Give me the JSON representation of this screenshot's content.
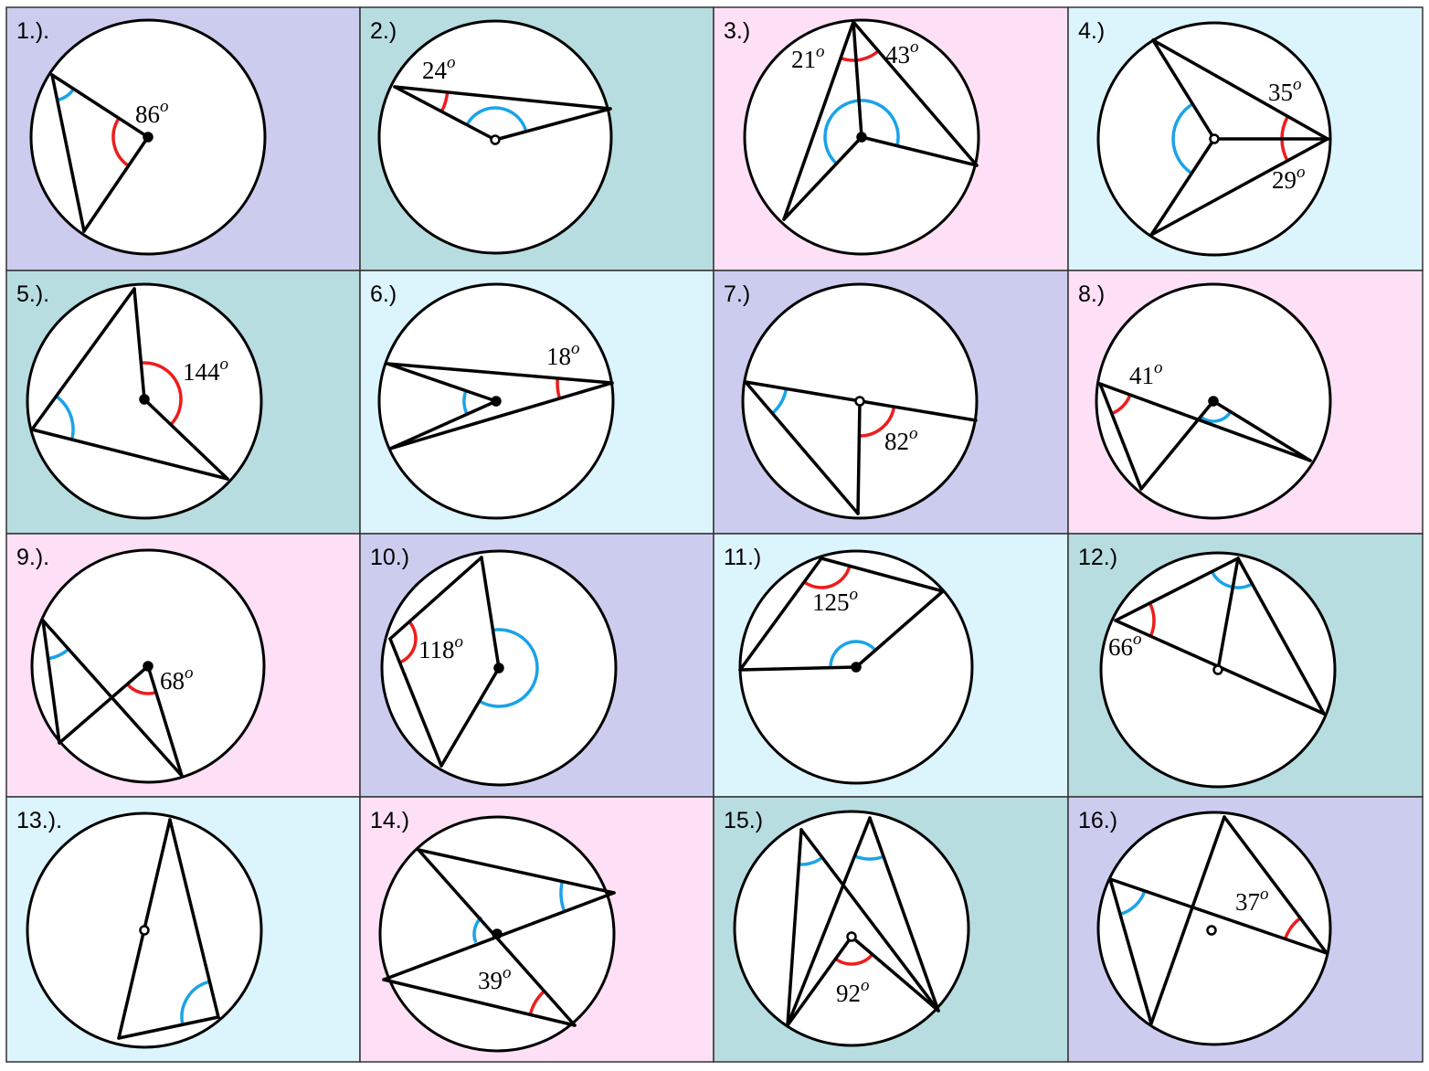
{
  "problems": [
    {
      "label": "1.).",
      "angles": [
        {
          "value": "86",
          "unit": "o"
        }
      ]
    },
    {
      "label": "2.)",
      "angles": [
        {
          "value": "24",
          "unit": "o"
        }
      ]
    },
    {
      "label": "3.)",
      "angles": [
        {
          "value": "21",
          "unit": "o"
        },
        {
          "value": "43",
          "unit": "o"
        }
      ]
    },
    {
      "label": "4.)",
      "angles": [
        {
          "value": "35",
          "unit": "o"
        },
        {
          "value": "29",
          "unit": "o"
        }
      ]
    },
    {
      "label": "5.).",
      "angles": [
        {
          "value": "144",
          "unit": "o"
        }
      ]
    },
    {
      "label": "6.)",
      "angles": [
        {
          "value": "18",
          "unit": "o"
        }
      ]
    },
    {
      "label": "7.)",
      "angles": [
        {
          "value": "82",
          "unit": "o"
        }
      ]
    },
    {
      "label": "8.)",
      "angles": [
        {
          "value": "41",
          "unit": "o"
        }
      ]
    },
    {
      "label": "9.).",
      "angles": [
        {
          "value": "68",
          "unit": "o"
        }
      ]
    },
    {
      "label": "10.)",
      "angles": [
        {
          "value": "118",
          "unit": "o"
        }
      ]
    },
    {
      "label": "11.)",
      "angles": [
        {
          "value": "125",
          "unit": "o"
        }
      ]
    },
    {
      "label": "12.)",
      "angles": [
        {
          "value": "66",
          "unit": "o"
        }
      ]
    },
    {
      "label": "13.).",
      "angles": []
    },
    {
      "label": "14.)",
      "angles": [
        {
          "value": "39",
          "unit": "o"
        }
      ]
    },
    {
      "label": "15.)",
      "angles": [
        {
          "value": "92",
          "unit": "o"
        }
      ]
    },
    {
      "label": "16.)",
      "angles": [
        {
          "value": "37",
          "unit": "o"
        }
      ]
    }
  ]
}
